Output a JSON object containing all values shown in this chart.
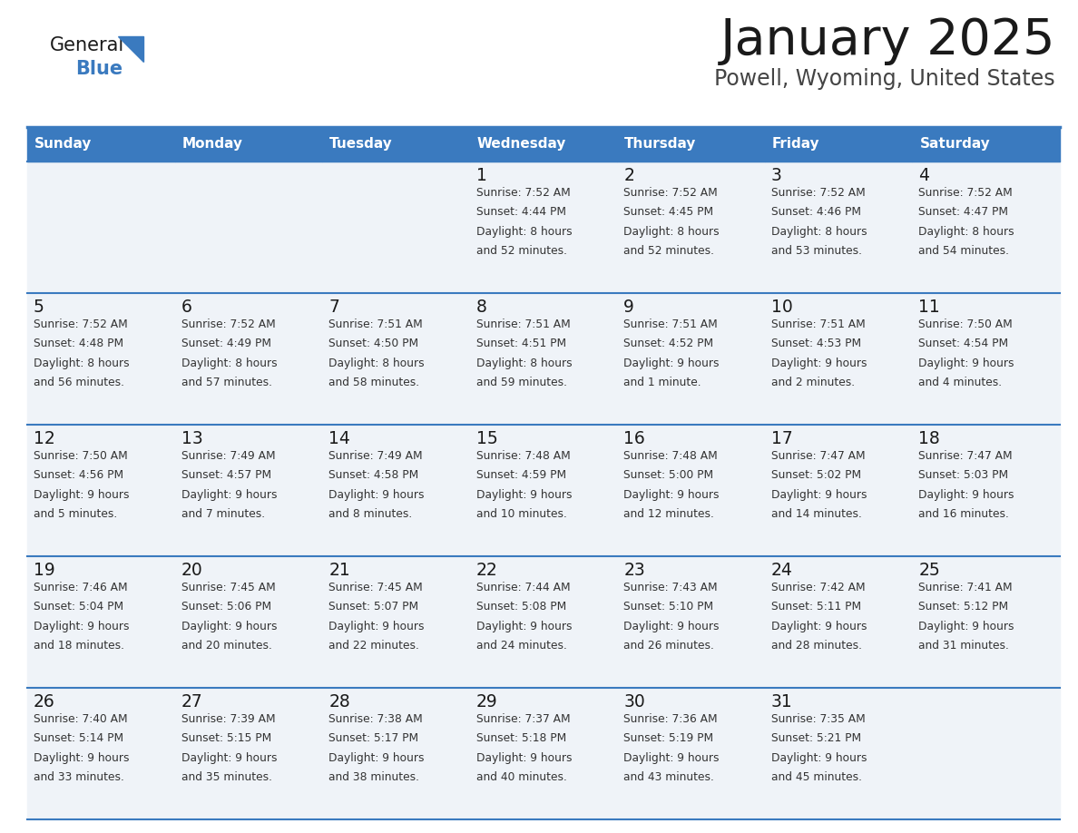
{
  "title": "January 2025",
  "subtitle": "Powell, Wyoming, United States",
  "header_color": "#3a7abf",
  "header_text_color": "#ffffff",
  "cell_bg_color": "#eff3f8",
  "day_names": [
    "Sunday",
    "Monday",
    "Tuesday",
    "Wednesday",
    "Thursday",
    "Friday",
    "Saturday"
  ],
  "logo_color": "#3a7abf",
  "logo_triangle_color": "#3a7abf",
  "border_color": "#3a7abf",
  "days": [
    {
      "day": 1,
      "col": 3,
      "row": 0,
      "sunrise": "7:52 AM",
      "sunset": "4:44 PM",
      "daylight_h": "8 hours",
      "daylight_m": "and 52 minutes."
    },
    {
      "day": 2,
      "col": 4,
      "row": 0,
      "sunrise": "7:52 AM",
      "sunset": "4:45 PM",
      "daylight_h": "8 hours",
      "daylight_m": "and 52 minutes."
    },
    {
      "day": 3,
      "col": 5,
      "row": 0,
      "sunrise": "7:52 AM",
      "sunset": "4:46 PM",
      "daylight_h": "8 hours",
      "daylight_m": "and 53 minutes."
    },
    {
      "day": 4,
      "col": 6,
      "row": 0,
      "sunrise": "7:52 AM",
      "sunset": "4:47 PM",
      "daylight_h": "8 hours",
      "daylight_m": "and 54 minutes."
    },
    {
      "day": 5,
      "col": 0,
      "row": 1,
      "sunrise": "7:52 AM",
      "sunset": "4:48 PM",
      "daylight_h": "8 hours",
      "daylight_m": "and 56 minutes."
    },
    {
      "day": 6,
      "col": 1,
      "row": 1,
      "sunrise": "7:52 AM",
      "sunset": "4:49 PM",
      "daylight_h": "8 hours",
      "daylight_m": "and 57 minutes."
    },
    {
      "day": 7,
      "col": 2,
      "row": 1,
      "sunrise": "7:51 AM",
      "sunset": "4:50 PM",
      "daylight_h": "8 hours",
      "daylight_m": "and 58 minutes."
    },
    {
      "day": 8,
      "col": 3,
      "row": 1,
      "sunrise": "7:51 AM",
      "sunset": "4:51 PM",
      "daylight_h": "8 hours",
      "daylight_m": "and 59 minutes."
    },
    {
      "day": 9,
      "col": 4,
      "row": 1,
      "sunrise": "7:51 AM",
      "sunset": "4:52 PM",
      "daylight_h": "9 hours",
      "daylight_m": "and 1 minute."
    },
    {
      "day": 10,
      "col": 5,
      "row": 1,
      "sunrise": "7:51 AM",
      "sunset": "4:53 PM",
      "daylight_h": "9 hours",
      "daylight_m": "and 2 minutes."
    },
    {
      "day": 11,
      "col": 6,
      "row": 1,
      "sunrise": "7:50 AM",
      "sunset": "4:54 PM",
      "daylight_h": "9 hours",
      "daylight_m": "and 4 minutes."
    },
    {
      "day": 12,
      "col": 0,
      "row": 2,
      "sunrise": "7:50 AM",
      "sunset": "4:56 PM",
      "daylight_h": "9 hours",
      "daylight_m": "and 5 minutes."
    },
    {
      "day": 13,
      "col": 1,
      "row": 2,
      "sunrise": "7:49 AM",
      "sunset": "4:57 PM",
      "daylight_h": "9 hours",
      "daylight_m": "and 7 minutes."
    },
    {
      "day": 14,
      "col": 2,
      "row": 2,
      "sunrise": "7:49 AM",
      "sunset": "4:58 PM",
      "daylight_h": "9 hours",
      "daylight_m": "and 8 minutes."
    },
    {
      "day": 15,
      "col": 3,
      "row": 2,
      "sunrise": "7:48 AM",
      "sunset": "4:59 PM",
      "daylight_h": "9 hours",
      "daylight_m": "and 10 minutes."
    },
    {
      "day": 16,
      "col": 4,
      "row": 2,
      "sunrise": "7:48 AM",
      "sunset": "5:00 PM",
      "daylight_h": "9 hours",
      "daylight_m": "and 12 minutes."
    },
    {
      "day": 17,
      "col": 5,
      "row": 2,
      "sunrise": "7:47 AM",
      "sunset": "5:02 PM",
      "daylight_h": "9 hours",
      "daylight_m": "and 14 minutes."
    },
    {
      "day": 18,
      "col": 6,
      "row": 2,
      "sunrise": "7:47 AM",
      "sunset": "5:03 PM",
      "daylight_h": "9 hours",
      "daylight_m": "and 16 minutes."
    },
    {
      "day": 19,
      "col": 0,
      "row": 3,
      "sunrise": "7:46 AM",
      "sunset": "5:04 PM",
      "daylight_h": "9 hours",
      "daylight_m": "and 18 minutes."
    },
    {
      "day": 20,
      "col": 1,
      "row": 3,
      "sunrise": "7:45 AM",
      "sunset": "5:06 PM",
      "daylight_h": "9 hours",
      "daylight_m": "and 20 minutes."
    },
    {
      "day": 21,
      "col": 2,
      "row": 3,
      "sunrise": "7:45 AM",
      "sunset": "5:07 PM",
      "daylight_h": "9 hours",
      "daylight_m": "and 22 minutes."
    },
    {
      "day": 22,
      "col": 3,
      "row": 3,
      "sunrise": "7:44 AM",
      "sunset": "5:08 PM",
      "daylight_h": "9 hours",
      "daylight_m": "and 24 minutes."
    },
    {
      "day": 23,
      "col": 4,
      "row": 3,
      "sunrise": "7:43 AM",
      "sunset": "5:10 PM",
      "daylight_h": "9 hours",
      "daylight_m": "and 26 minutes."
    },
    {
      "day": 24,
      "col": 5,
      "row": 3,
      "sunrise": "7:42 AM",
      "sunset": "5:11 PM",
      "daylight_h": "9 hours",
      "daylight_m": "and 28 minutes."
    },
    {
      "day": 25,
      "col": 6,
      "row": 3,
      "sunrise": "7:41 AM",
      "sunset": "5:12 PM",
      "daylight_h": "9 hours",
      "daylight_m": "and 31 minutes."
    },
    {
      "day": 26,
      "col": 0,
      "row": 4,
      "sunrise": "7:40 AM",
      "sunset": "5:14 PM",
      "daylight_h": "9 hours",
      "daylight_m": "and 33 minutes."
    },
    {
      "day": 27,
      "col": 1,
      "row": 4,
      "sunrise": "7:39 AM",
      "sunset": "5:15 PM",
      "daylight_h": "9 hours",
      "daylight_m": "and 35 minutes."
    },
    {
      "day": 28,
      "col": 2,
      "row": 4,
      "sunrise": "7:38 AM",
      "sunset": "5:17 PM",
      "daylight_h": "9 hours",
      "daylight_m": "and 38 minutes."
    },
    {
      "day": 29,
      "col": 3,
      "row": 4,
      "sunrise": "7:37 AM",
      "sunset": "5:18 PM",
      "daylight_h": "9 hours",
      "daylight_m": "and 40 minutes."
    },
    {
      "day": 30,
      "col": 4,
      "row": 4,
      "sunrise": "7:36 AM",
      "sunset": "5:19 PM",
      "daylight_h": "9 hours",
      "daylight_m": "and 43 minutes."
    },
    {
      "day": 31,
      "col": 5,
      "row": 4,
      "sunrise": "7:35 AM",
      "sunset": "5:21 PM",
      "daylight_h": "9 hours",
      "daylight_m": "and 45 minutes."
    }
  ]
}
